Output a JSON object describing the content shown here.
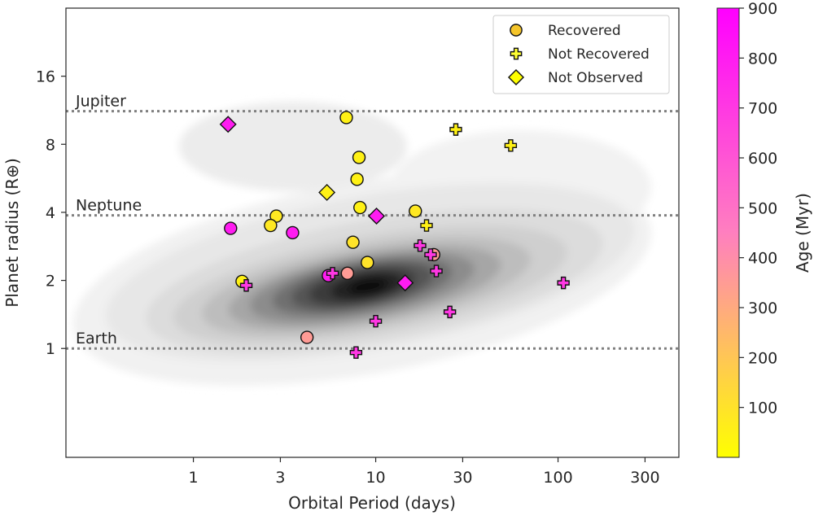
{
  "chart_data": {
    "type": "scatter",
    "xlabel": "Orbital Period (days)",
    "ylabel": "Planet radius (R⊕)",
    "x_scale": "log",
    "y_scale": "log",
    "xlim": [
      0.2,
      460
    ],
    "ylim": [
      0.33,
      32
    ],
    "x_ticks": [
      {
        "value": 1,
        "label": "1"
      },
      {
        "value": 3,
        "label": "3"
      },
      {
        "value": 10,
        "label": "10"
      },
      {
        "value": 30,
        "label": "30"
      },
      {
        "value": 100,
        "label": "100"
      },
      {
        "value": 300,
        "label": "300"
      }
    ],
    "y_ticks": [
      {
        "value": 1,
        "label": "1"
      },
      {
        "value": 2,
        "label": "2"
      },
      {
        "value": 4,
        "label": "4"
      },
      {
        "value": 8,
        "label": "8"
      },
      {
        "value": 16,
        "label": "16"
      }
    ],
    "reference_lines": [
      {
        "name": "Jupiter",
        "radius": 11.2
      },
      {
        "name": "Neptune",
        "radius": 3.88
      },
      {
        "name": "Earth",
        "radius": 1.0
      }
    ],
    "legend": {
      "position": "top-right",
      "entries": [
        "Recovered",
        "Not Recovered",
        "Not Observed"
      ]
    },
    "colorbar": {
      "label": "Age (Myr)",
      "min": 0,
      "max": 900,
      "ticks": [
        "100",
        "200",
        "300",
        "400",
        "500",
        "600",
        "700",
        "800",
        "900"
      ],
      "colors": [
        "#ffff00",
        "#ff7fbf",
        "#ff00ff"
      ]
    },
    "series": [
      {
        "name": "Recovered",
        "marker": "circle",
        "points": [
          {
            "period": 6.9,
            "radius": 10.5,
            "age": 50
          },
          {
            "period": 8.1,
            "radius": 7.0,
            "age": 50
          },
          {
            "period": 7.9,
            "radius": 5.6,
            "age": 50
          },
          {
            "period": 8.2,
            "radius": 4.2,
            "age": 50
          },
          {
            "period": 2.85,
            "radius": 3.85,
            "age": 80
          },
          {
            "period": 2.65,
            "radius": 3.5,
            "age": 80
          },
          {
            "period": 16.5,
            "radius": 4.05,
            "age": 80
          },
          {
            "period": 7.5,
            "radius": 2.95,
            "age": 100
          },
          {
            "period": 9.0,
            "radius": 2.4,
            "age": 100
          },
          {
            "period": 1.85,
            "radius": 1.98,
            "age": 50
          },
          {
            "period": 1.6,
            "radius": 3.4,
            "age": 800
          },
          {
            "period": 3.5,
            "radius": 3.25,
            "age": 800
          },
          {
            "period": 5.5,
            "radius": 2.1,
            "age": 800
          },
          {
            "period": 7.0,
            "radius": 2.15,
            "age": 350
          },
          {
            "period": 20.8,
            "radius": 2.6,
            "age": 350
          },
          {
            "period": 4.2,
            "radius": 1.12,
            "age": 350
          }
        ]
      },
      {
        "name": "Not Recovered",
        "marker": "plus",
        "points": [
          {
            "period": 27.5,
            "radius": 9.3,
            "age": 50
          },
          {
            "period": 55,
            "radius": 7.9,
            "age": 50
          },
          {
            "period": 19.0,
            "radius": 3.5,
            "age": 50
          },
          {
            "period": 17.5,
            "radius": 2.85,
            "age": 700
          },
          {
            "period": 20.0,
            "radius": 2.6,
            "age": 700
          },
          {
            "period": 21.5,
            "radius": 2.2,
            "age": 700
          },
          {
            "period": 5.8,
            "radius": 2.15,
            "age": 700
          },
          {
            "period": 1.95,
            "radius": 1.9,
            "age": 700
          },
          {
            "period": 10.0,
            "radius": 1.32,
            "age": 700
          },
          {
            "period": 25.5,
            "radius": 1.45,
            "age": 700
          },
          {
            "period": 7.8,
            "radius": 0.96,
            "age": 700
          },
          {
            "period": 107,
            "radius": 1.95,
            "age": 700
          }
        ]
      },
      {
        "name": "Not Observed",
        "marker": "diamond",
        "points": [
          {
            "period": 1.55,
            "radius": 9.8,
            "age": 800
          },
          {
            "period": 5.4,
            "radius": 4.9,
            "age": 50
          },
          {
            "period": 10.1,
            "radius": 3.85,
            "age": 800
          },
          {
            "period": 14.5,
            "radius": 1.95,
            "age": 800
          }
        ]
      }
    ]
  }
}
